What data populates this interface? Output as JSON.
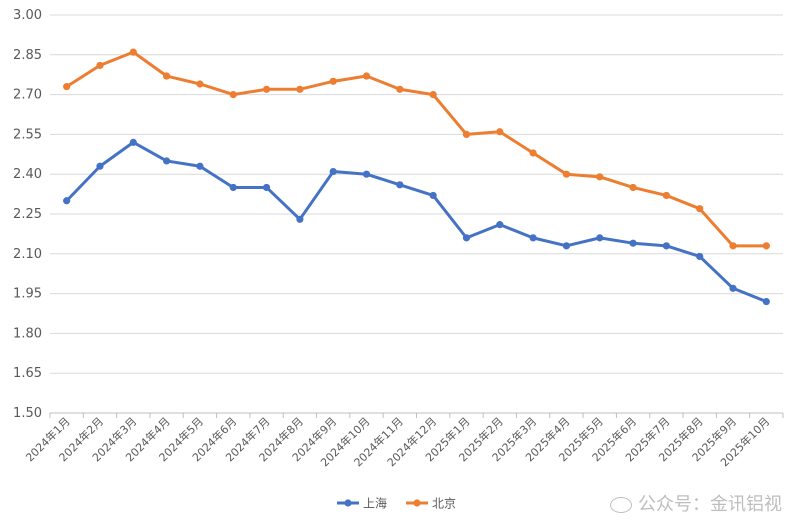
{
  "chart_data": {
    "type": "line",
    "categories": [
      "2024年1月",
      "2024年2月",
      "2024年3月",
      "2024年4月",
      "2024年5月",
      "2024年6月",
      "2024年7月",
      "2024年8月",
      "2024年9月",
      "2024年10月",
      "2024年11月",
      "2024年12月",
      "2025年1月",
      "2025年2月",
      "2025年3月",
      "2025年4月",
      "2025年5月",
      "2025年6月",
      "2025年7月",
      "2025年8月",
      "2025年9月",
      "2025年10月"
    ],
    "series": [
      {
        "name": "上海",
        "color": "#4472C4",
        "values": [
          2.3,
          2.43,
          2.52,
          2.45,
          2.43,
          2.35,
          2.35,
          2.23,
          2.41,
          2.4,
          2.36,
          2.32,
          2.16,
          2.21,
          2.16,
          2.13,
          2.16,
          2.14,
          2.13,
          2.09,
          1.97,
          1.92
        ]
      },
      {
        "name": "北京",
        "color": "#ED7D31",
        "values": [
          2.73,
          2.81,
          2.86,
          2.77,
          2.74,
          2.7,
          2.72,
          2.72,
          2.75,
          2.77,
          2.72,
          2.7,
          2.55,
          2.56,
          2.48,
          2.4,
          2.39,
          2.35,
          2.32,
          2.27,
          2.13,
          2.13
        ]
      }
    ],
    "title": "",
    "xlabel": "",
    "ylabel": "",
    "ylim": [
      1.5,
      3.0
    ],
    "yticks": [
      "1.50",
      "1.65",
      "1.80",
      "1.95",
      "2.10",
      "2.25",
      "2.40",
      "2.55",
      "2.70",
      "2.85",
      "3.00"
    ],
    "grid": true,
    "legend_position": "bottom"
  },
  "watermark": {
    "text": "公众号：金讯铝视",
    "icon": "wechat-icon"
  }
}
